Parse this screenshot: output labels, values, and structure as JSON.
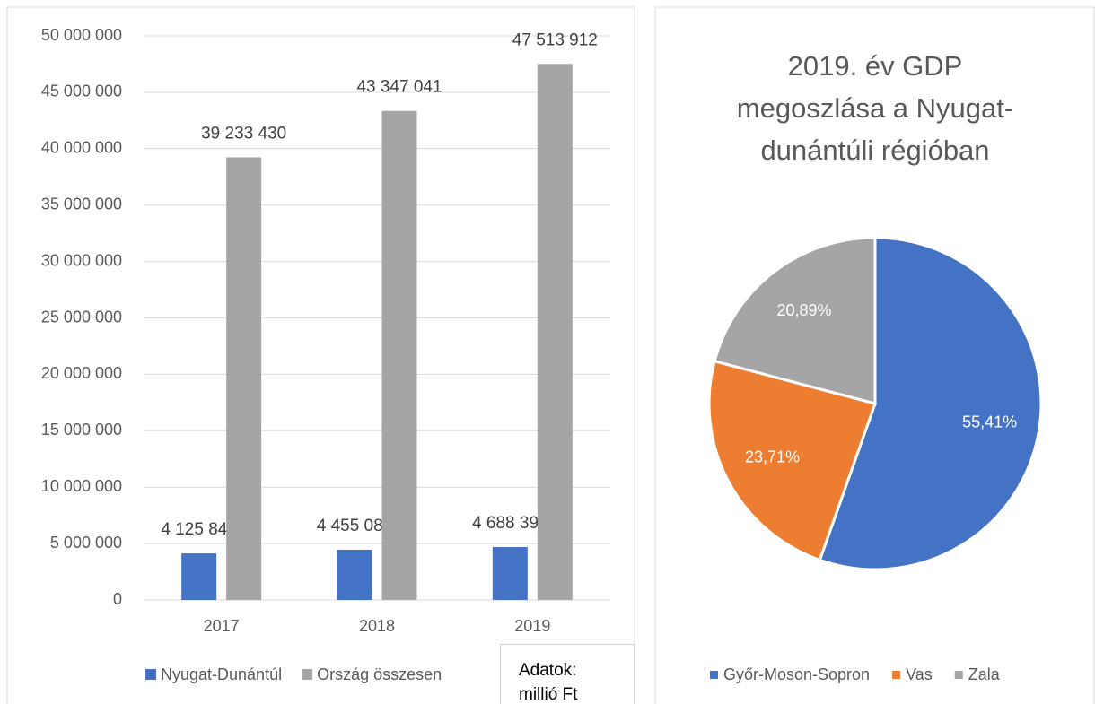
{
  "chart_data": [
    {
      "type": "bar",
      "categories": [
        "2017",
        "2018",
        "2019"
      ],
      "series": [
        {
          "name": "Nyugat-Dunántúl",
          "color": "#4472c4",
          "values": [
            4125848,
            4455080,
            4688396
          ],
          "value_labels": [
            "4 125 848",
            "4 455 080",
            "4 688 396"
          ]
        },
        {
          "name": "Ország összesen",
          "color": "#a5a5a5",
          "values": [
            39233430,
            43347041,
            47513912
          ],
          "value_labels": [
            "39 233 430",
            "43 347 041",
            "47 513 912"
          ]
        }
      ],
      "ylim": [
        0,
        50000000
      ],
      "yticks": [
        0,
        {
          "value": 5000000,
          "label": "5 000 000"
        },
        {
          "value": 10000000,
          "label": "10 000 000"
        },
        {
          "value": 15000000,
          "label": "15 000 000"
        },
        {
          "value": 20000000,
          "label": "20 000 000"
        },
        {
          "value": 25000000,
          "label": "25 000 000"
        },
        {
          "value": 30000000,
          "label": "30 000 000"
        },
        {
          "value": 35000000,
          "label": "35 000 000"
        },
        {
          "value": 40000000,
          "label": "40 000 000"
        },
        {
          "value": 45000000,
          "label": "45 000 000"
        },
        {
          "value": 50000000,
          "label": "50 000 000"
        }
      ],
      "grid": true,
      "legend": "bottom",
      "annotation": "Adatok: millió Ft"
    },
    {
      "type": "pie",
      "title": "2019. év GDP megoszlása a Nyugat-dunántúli régióban",
      "categories": [
        "Győr-Moson-Sopron",
        "Vas",
        "Zala"
      ],
      "values": [
        55.41,
        23.71,
        20.89
      ],
      "value_labels": [
        "55,41%",
        "23,71%",
        "20,89%"
      ],
      "colors": [
        "#4472c4",
        "#ed7d31",
        "#a5a5a5"
      ],
      "legend": "bottom"
    }
  ]
}
